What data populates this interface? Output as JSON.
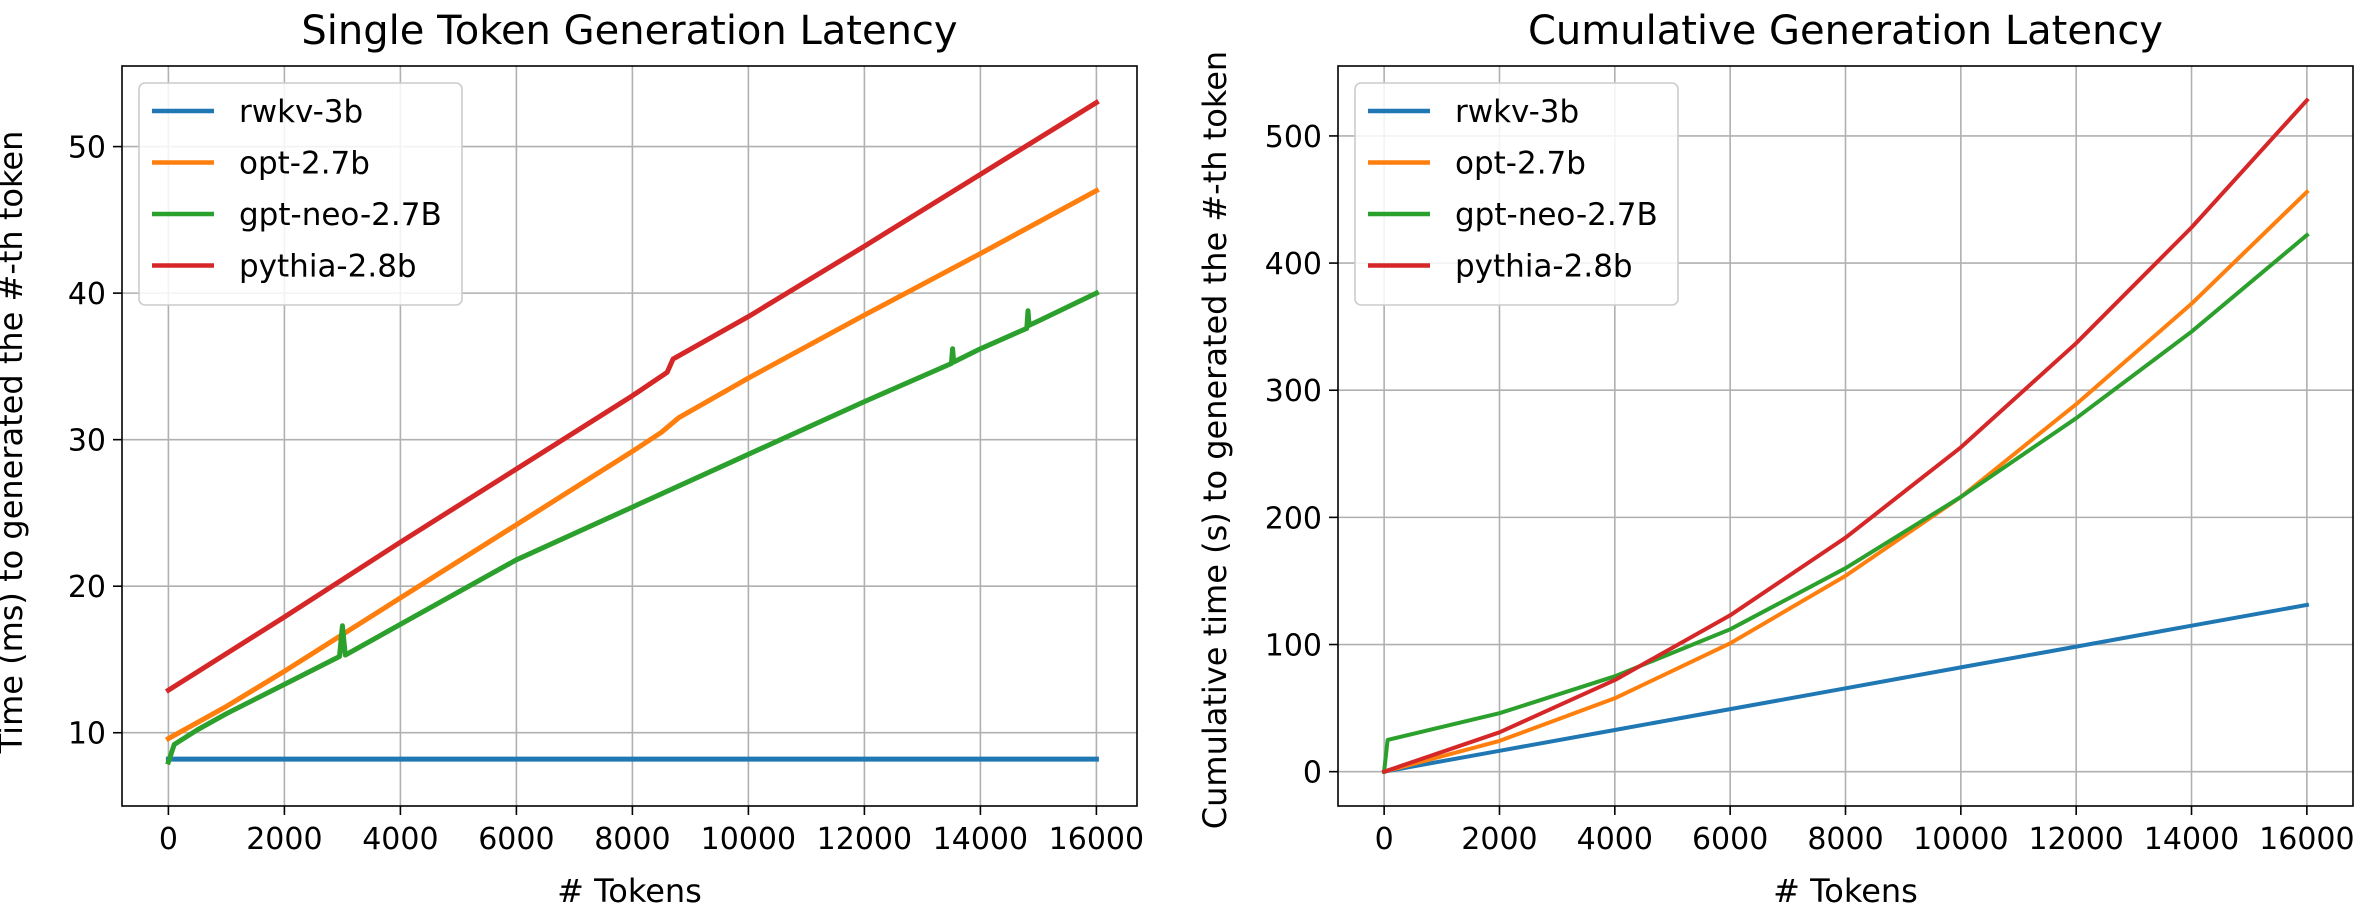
{
  "chart_data": [
    {
      "type": "line",
      "title": "Single Token Generation Latency",
      "xlabel": "# Tokens",
      "ylabel": "Time (ms) to generated the #-th token",
      "xlim": [
        -800,
        16700
      ],
      "ylim": [
        5,
        55.5
      ],
      "xticks": [
        0,
        2000,
        4000,
        6000,
        8000,
        10000,
        12000,
        14000,
        16000
      ],
      "yticks": [
        10,
        20,
        30,
        40,
        50
      ],
      "grid": true,
      "legend_position": "upper-left",
      "series": [
        {
          "name": "rwkv-3b",
          "color": "#1f77b4",
          "x": [
            0,
            4000,
            8000,
            12000,
            16000
          ],
          "y": [
            8.2,
            8.2,
            8.2,
            8.2,
            8.2
          ]
        },
        {
          "name": "opt-2.7b",
          "color": "#ff7f0e",
          "x": [
            0,
            1000,
            2000,
            4000,
            6000,
            8000,
            8500,
            8800,
            10000,
            12000,
            14000,
            16000
          ],
          "y": [
            9.6,
            11.8,
            14.2,
            19.2,
            24.2,
            29.2,
            30.5,
            31.5,
            34.2,
            38.5,
            42.7,
            47.0
          ]
        },
        {
          "name": "gpt-neo-2.7B",
          "color": "#2ca02c",
          "x": [
            0,
            100,
            500,
            1000,
            2000,
            2950,
            3000,
            3050,
            4000,
            6000,
            8000,
            10000,
            12000,
            13500,
            13520,
            13540,
            14000,
            14800,
            14820,
            14840,
            15000,
            16000
          ],
          "y": [
            8.0,
            9.2,
            10.2,
            11.3,
            13.3,
            15.2,
            17.3,
            15.3,
            17.4,
            21.8,
            25.4,
            29.0,
            32.6,
            35.2,
            36.2,
            35.3,
            36.2,
            37.6,
            38.8,
            37.8,
            38.1,
            40.0
          ]
        },
        {
          "name": "pythia-2.8b",
          "color": "#d62728",
          "x": [
            0,
            2000,
            4000,
            6000,
            8000,
            8600,
            8700,
            10000,
            12000,
            14000,
            16000
          ],
          "y": [
            12.9,
            17.9,
            23.0,
            28.0,
            33.0,
            34.6,
            35.5,
            38.4,
            43.2,
            48.1,
            53.0
          ]
        }
      ]
    },
    {
      "type": "line",
      "title": "Cumulative Generation Latency",
      "xlabel": "# Tokens",
      "ylabel": "Cumulative time (s) to generated the #-th token",
      "xlim": [
        -800,
        16800
      ],
      "ylim": [
        -27,
        555
      ],
      "xticks": [
        0,
        2000,
        4000,
        6000,
        8000,
        10000,
        12000,
        14000,
        16000
      ],
      "yticks": [
        0,
        100,
        200,
        300,
        400,
        500
      ],
      "grid": true,
      "legend_position": "upper-left",
      "series": [
        {
          "name": "rwkv-3b",
          "color": "#1f77b4",
          "x": [
            0,
            2000,
            4000,
            6000,
            8000,
            10000,
            12000,
            14000,
            16000
          ],
          "y": [
            0,
            16.4,
            32.8,
            49.2,
            65.6,
            82.0,
            98.4,
            114.8,
            131.2
          ]
        },
        {
          "name": "opt-2.7b",
          "color": "#ff7f0e",
          "x": [
            0,
            2000,
            4000,
            6000,
            8000,
            10000,
            12000,
            14000,
            16000
          ],
          "y": [
            0,
            24.2,
            57.7,
            101.0,
            154.0,
            216.0,
            289.0,
            368.0,
            456.0
          ]
        },
        {
          "name": "gpt-neo-2.7B",
          "color": "#2ca02c",
          "x": [
            0,
            60,
            2000,
            4000,
            6000,
            8000,
            10000,
            12000,
            14000,
            16000
          ],
          "y": [
            0,
            25.0,
            46.0,
            75.0,
            112.0,
            160.0,
            216.0,
            278.0,
            346.0,
            422.0
          ]
        },
        {
          "name": "pythia-2.8b",
          "color": "#d62728",
          "x": [
            0,
            2000,
            4000,
            6000,
            8000,
            10000,
            12000,
            14000,
            16000
          ],
          "y": [
            0,
            31.0,
            72.0,
            123.0,
            184.0,
            255.0,
            337.0,
            428.0,
            528.0
          ]
        }
      ]
    }
  ]
}
